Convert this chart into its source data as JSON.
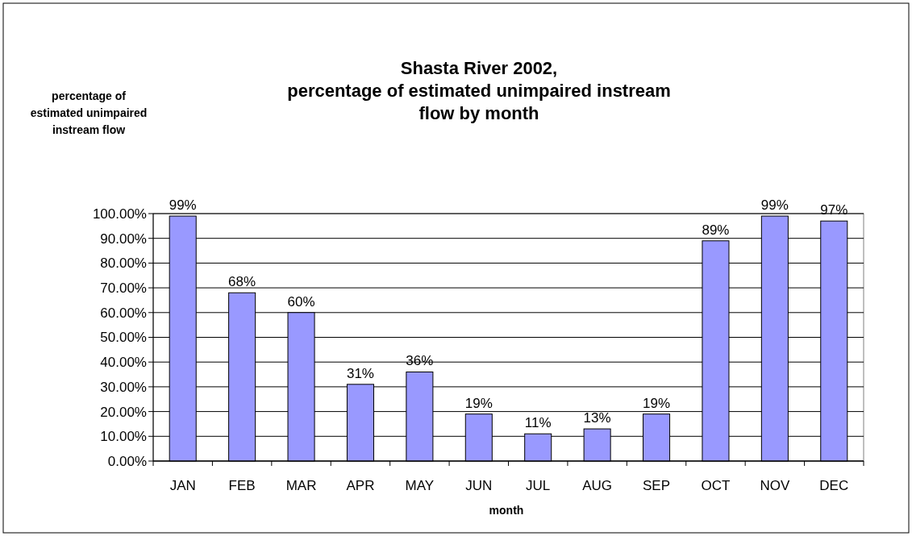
{
  "chart_data": {
    "type": "bar",
    "title": "Shasta River 2002, percentage of estimated unimpaired instream flow by month",
    "xlabel": "month",
    "annotations": [
      "percentage of estimated unimpaired instream flow"
    ],
    "categories": [
      "JAN",
      "FEB",
      "MAR",
      "APR",
      "MAY",
      "JUN",
      "JUL",
      "AUG",
      "SEP",
      "OCT",
      "NOV",
      "DEC"
    ],
    "values": [
      99,
      68,
      60,
      31,
      36,
      19,
      11,
      13,
      19,
      89,
      99,
      97
    ],
    "value_labels": [
      "99%",
      "68%",
      "60%",
      "31%",
      "36%",
      "19%",
      "11%",
      "13%",
      "19%",
      "89%",
      "99%",
      "97%"
    ],
    "color": "#9999ff",
    "ylim": [
      0,
      100
    ],
    "yticks": [
      {
        "value": 0,
        "label": "0.00%"
      },
      {
        "value": 10,
        "label": "10.00%"
      },
      {
        "value": 20,
        "label": "20.00%"
      },
      {
        "value": 30,
        "label": "30.00%"
      },
      {
        "value": 40,
        "label": "40.00%"
      },
      {
        "value": 50,
        "label": "50.00%"
      },
      {
        "value": 60,
        "label": "60.00%"
      },
      {
        "value": 70,
        "label": "70.00%"
      },
      {
        "value": 80,
        "label": "80.00%"
      },
      {
        "value": 90,
        "label": "90.00%"
      },
      {
        "value": 100,
        "label": "100.00%"
      }
    ],
    "grid": "y"
  }
}
